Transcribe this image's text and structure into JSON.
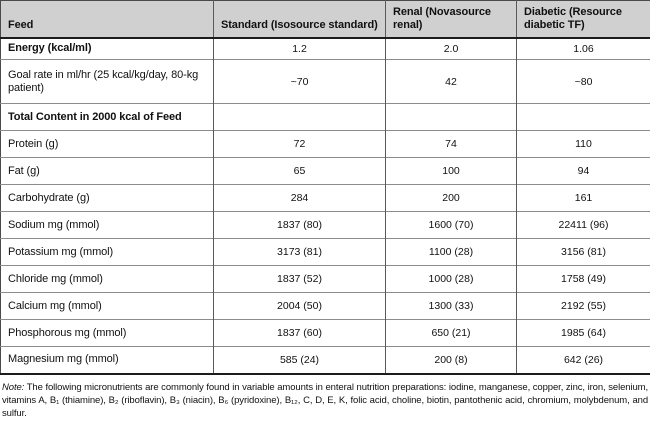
{
  "colors": {
    "header_background": "#d0d0d0",
    "grid_line": "#8c8c8c",
    "column_line": "#5a5a5a",
    "heavy_rule": "#1c1c1c",
    "text": "#111111"
  },
  "table": {
    "columns": [
      "Feed",
      "Standard (Isosource standard)",
      "Renal (Novasource renal)",
      "Diabetic (Resource diabetic TF)"
    ],
    "rows": [
      {
        "label": "Energy (kcal/ml)",
        "bold": true,
        "values": [
          "1.2",
          "2.0",
          "1.06"
        ]
      },
      {
        "label": "Goal rate in ml/hr (25 kcal/kg/day, 80-kg patient)",
        "bold": false,
        "values": [
          "~70",
          "42",
          "~80"
        ]
      },
      {
        "label": "Total Content in 2000 kcal of Feed",
        "bold": true,
        "values": [
          "",
          "",
          ""
        ]
      },
      {
        "label": "Protein (g)",
        "bold": false,
        "values": [
          "72",
          "74",
          "110"
        ]
      },
      {
        "label": "Fat (g)",
        "bold": false,
        "values": [
          "65",
          "100",
          "94"
        ]
      },
      {
        "label": "Carbohydrate (g)",
        "bold": false,
        "values": [
          "284",
          "200",
          "161"
        ]
      },
      {
        "label": "Sodium mg (mmol)",
        "bold": false,
        "values": [
          "1837 (80)",
          "1600 (70)",
          "22411 (96)"
        ]
      },
      {
        "label": "Potassium mg (mmol)",
        "bold": false,
        "values": [
          "3173 (81)",
          "1100 (28)",
          "3156 (81)"
        ]
      },
      {
        "label": "Chloride mg (mmol)",
        "bold": false,
        "values": [
          "1837 (52)",
          "1000 (28)",
          "1758 (49)"
        ]
      },
      {
        "label": "Calcium mg (mmol)",
        "bold": false,
        "values": [
          "2004 (50)",
          "1300 (33)",
          "2192 (55)"
        ]
      },
      {
        "label": "Phosphorous mg (mmol)",
        "bold": false,
        "values": [
          "1837 (60)",
          "650 (21)",
          "1985 (64)"
        ]
      },
      {
        "label": "Magnesium mg (mmol)",
        "bold": false,
        "values": [
          "585 (24)",
          "200 (8)",
          "642 (26)"
        ]
      }
    ]
  },
  "note": {
    "label": "Note:",
    "text": " The following micronutrients are commonly found in variable amounts in enteral nutrition preparations: iodine, manganese, copper, zinc, iron, selenium, vitamins A, B₁ (thiamine), B₂ (riboflavin), B₃ (niacin), B₆ (pyridoxine), B₁₂, C, D, E, K, folic acid, choline, biotin, pantothenic acid, chromium, molybdenum, and sulfur."
  }
}
